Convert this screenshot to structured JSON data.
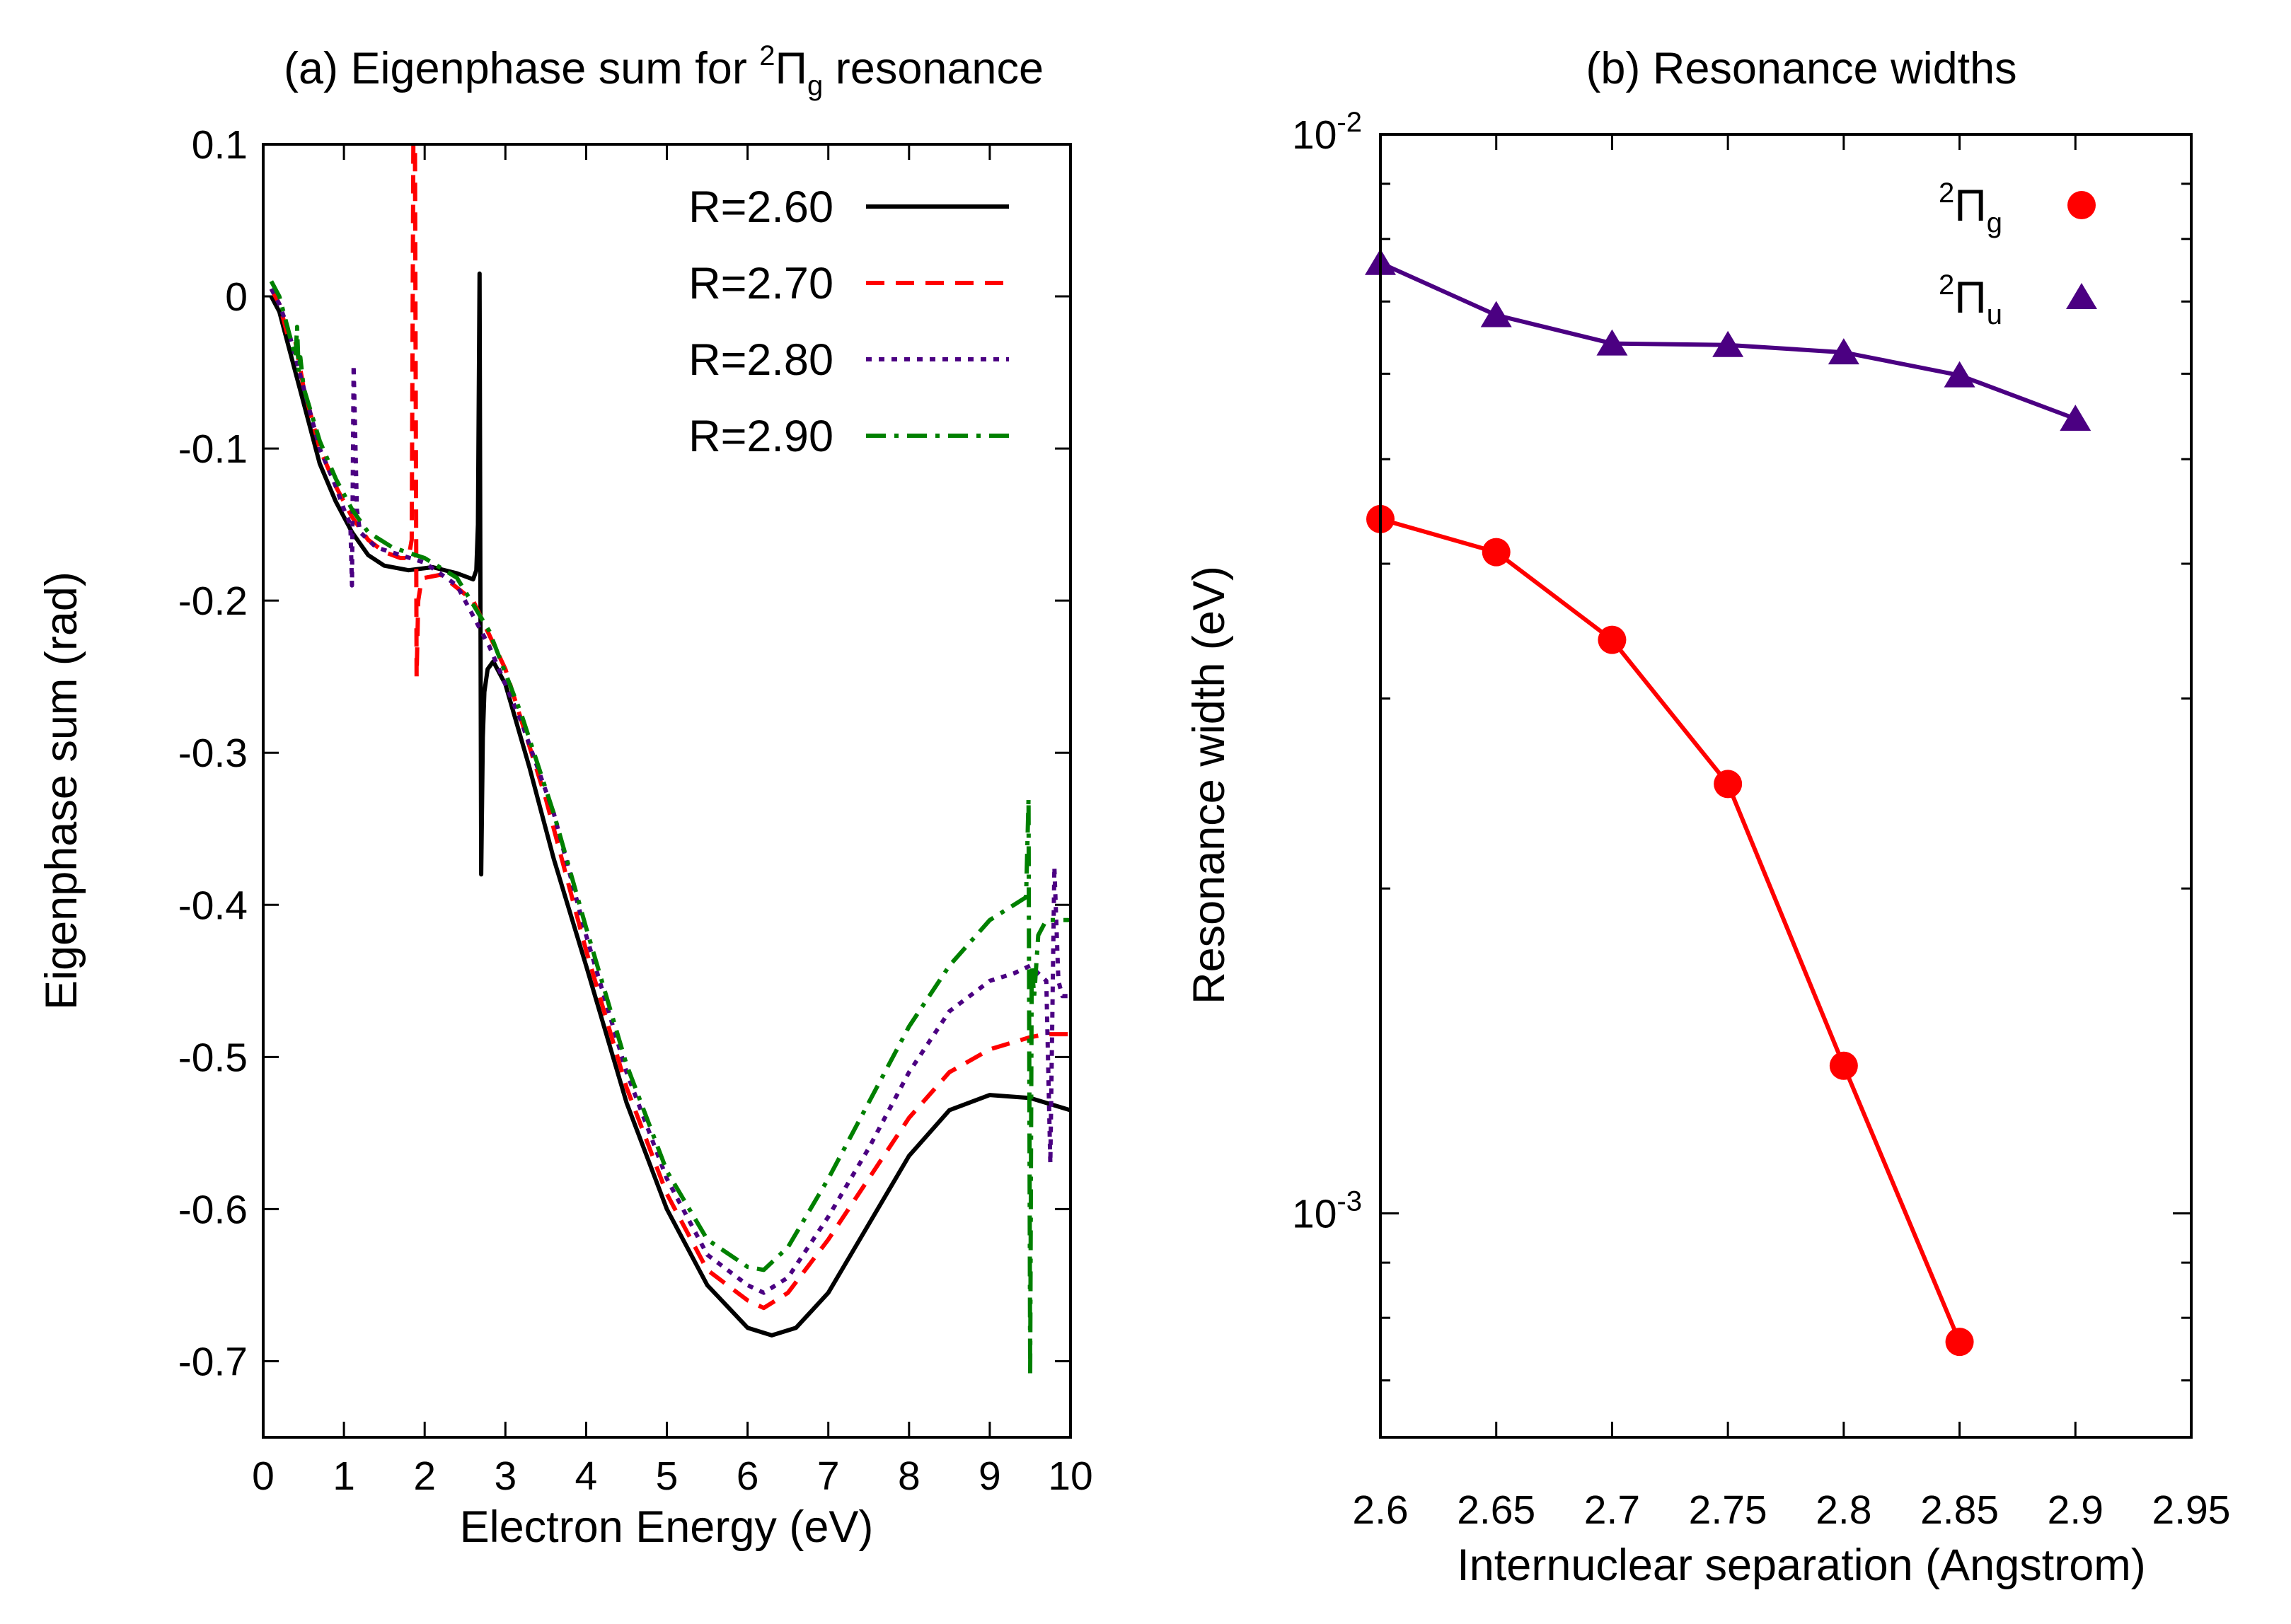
{
  "chart_data": [
    {
      "type": "line",
      "title": "(a) Eigenphase sum for ²Π_g resonance",
      "title_parts": {
        "prefix": "(a) Eigenphase sum for ",
        "sup": "2",
        "symbol": "Π",
        "sub": "g",
        "suffix": " resonance"
      },
      "xlabel": "Electron Energy (eV)",
      "ylabel": "Eigenphase sum (rad)",
      "xlim": [
        0,
        10
      ],
      "ylim": [
        -0.75,
        0.1
      ],
      "xticks": [
        "0",
        "1",
        "2",
        "3",
        "4",
        "5",
        "6",
        "7",
        "8",
        "9",
        "10"
      ],
      "yticks": [
        "0.1",
        "0",
        "-0.1",
        "-0.2",
        "-0.3",
        "-0.4",
        "-0.5",
        "-0.6",
        "-0.7"
      ],
      "legend_position": "top-right",
      "series": [
        {
          "name": "R=2.60",
          "color": "#000000",
          "dash": "solid",
          "x": [
            0.1,
            0.2,
            0.3,
            0.5,
            0.7,
            0.9,
            1.1,
            1.3,
            1.5,
            1.8,
            2.1,
            2.4,
            2.6,
            2.64,
            2.66,
            2.68,
            2.7,
            2.72,
            2.74,
            2.78,
            2.85,
            3.0,
            3.3,
            3.6,
            4.0,
            4.5,
            5.0,
            5.5,
            6.0,
            6.3,
            6.6,
            7.0,
            7.5,
            8.0,
            8.5,
            9.0,
            9.5,
            10.0
          ],
          "y": [
            0.0,
            -0.01,
            -0.03,
            -0.07,
            -0.11,
            -0.135,
            -0.155,
            -0.17,
            -0.177,
            -0.18,
            -0.178,
            -0.182,
            -0.186,
            -0.18,
            -0.15,
            0.015,
            -0.38,
            -0.29,
            -0.26,
            -0.245,
            -0.24,
            -0.255,
            -0.31,
            -0.37,
            -0.44,
            -0.53,
            -0.6,
            -0.65,
            -0.678,
            -0.683,
            -0.678,
            -0.655,
            -0.61,
            -0.565,
            -0.535,
            -0.525,
            -0.527,
            -0.535
          ]
        },
        {
          "name": "R=2.70",
          "color": "#ff0000",
          "dash": "dashed",
          "x": [
            0.1,
            0.2,
            0.3,
            0.4,
            0.5,
            0.7,
            0.9,
            1.1,
            1.3,
            1.5,
            1.7,
            1.8,
            1.84,
            1.86,
            1.88,
            1.9,
            1.92,
            1.95,
            2.0,
            2.2,
            2.6,
            3.0,
            3.5,
            4.0,
            4.5,
            5.0,
            5.5,
            6.0,
            6.2,
            6.5,
            7.0,
            7.5,
            8.0,
            8.5,
            9.0,
            9.5,
            9.7,
            9.8,
            10.0
          ],
          "y": [
            0.005,
            -0.005,
            -0.025,
            -0.03,
            -0.06,
            -0.1,
            -0.125,
            -0.145,
            -0.16,
            -0.168,
            -0.172,
            -0.172,
            -0.16,
            0.1,
            0.1,
            -0.25,
            -0.2,
            -0.19,
            -0.185,
            -0.183,
            -0.2,
            -0.245,
            -0.33,
            -0.43,
            -0.52,
            -0.59,
            -0.64,
            -0.66,
            -0.665,
            -0.655,
            -0.62,
            -0.58,
            -0.54,
            -0.51,
            -0.495,
            -0.487,
            -0.485,
            -0.485,
            -0.485
          ]
        },
        {
          "name": "R=2.80",
          "color": "#4b0082",
          "dash": "dotted",
          "x": [
            0.1,
            0.2,
            0.3,
            0.5,
            0.7,
            0.9,
            1.0,
            1.08,
            1.1,
            1.12,
            1.16,
            1.2,
            1.4,
            1.7,
            2.0,
            2.4,
            2.8,
            3.2,
            3.6,
            4.0,
            4.5,
            5.0,
            5.5,
            6.0,
            6.2,
            6.5,
            7.0,
            7.5,
            8.0,
            8.5,
            9.0,
            9.3,
            9.5,
            9.7,
            9.75,
            9.8,
            9.85,
            9.9,
            10.0
          ],
          "y": [
            0.005,
            -0.005,
            -0.02,
            -0.06,
            -0.1,
            -0.125,
            -0.14,
            -0.15,
            -0.19,
            -0.045,
            -0.14,
            -0.155,
            -0.165,
            -0.17,
            -0.175,
            -0.19,
            -0.23,
            -0.28,
            -0.34,
            -0.42,
            -0.51,
            -0.58,
            -0.63,
            -0.65,
            -0.655,
            -0.645,
            -0.605,
            -0.56,
            -0.51,
            -0.47,
            -0.45,
            -0.445,
            -0.44,
            -0.45,
            -0.57,
            -0.375,
            -0.45,
            -0.46,
            -0.46
          ]
        },
        {
          "name": "R=2.90",
          "color": "#008000",
          "dash": "dashdot",
          "x": [
            0.1,
            0.2,
            0.3,
            0.4,
            0.42,
            0.44,
            0.46,
            0.5,
            0.7,
            0.9,
            1.1,
            1.3,
            1.6,
            2.0,
            2.4,
            2.8,
            3.2,
            3.6,
            4.0,
            4.5,
            5.0,
            5.5,
            6.0,
            6.2,
            6.5,
            7.0,
            7.5,
            8.0,
            8.5,
            9.0,
            9.3,
            9.45,
            9.48,
            9.5,
            9.52,
            9.55,
            9.6,
            9.7,
            10.0
          ],
          "y": [
            0.01,
            0.0,
            -0.02,
            -0.04,
            -0.02,
            -0.05,
            -0.04,
            -0.06,
            -0.095,
            -0.12,
            -0.14,
            -0.155,
            -0.165,
            -0.172,
            -0.185,
            -0.22,
            -0.275,
            -0.34,
            -0.415,
            -0.505,
            -0.575,
            -0.62,
            -0.638,
            -0.64,
            -0.625,
            -0.58,
            -0.53,
            -0.48,
            -0.44,
            -0.41,
            -0.4,
            -0.395,
            -0.33,
            -0.71,
            -0.44,
            -0.46,
            -0.42,
            -0.41,
            -0.41
          ]
        }
      ]
    },
    {
      "type": "line",
      "title": "(b) Resonance widths",
      "xlabel": "Internuclear separation (Angstrom)",
      "ylabel": "Resonance width (eV)",
      "xlim": [
        2.6,
        2.95
      ],
      "ylim": [
        0.00062,
        0.01
      ],
      "yscale": "log",
      "xticks": [
        "2.6",
        "2.65",
        "2.7",
        "2.75",
        "2.8",
        "2.85",
        "2.9",
        "2.95"
      ],
      "yticks": [
        {
          "base": "10",
          "exp": "-2"
        },
        {
          "base": "10",
          "exp": "-3"
        }
      ],
      "legend_position": "top-right",
      "series": [
        {
          "name": "²Π_g",
          "sup": "2",
          "symbol": "Π",
          "sub": "g",
          "color": "#ff0000",
          "marker": "circle",
          "x": [
            2.6,
            2.65,
            2.7,
            2.75,
            2.8,
            2.85
          ],
          "y": [
            0.0044,
            0.0041,
            0.0034,
            0.0025,
            0.00137,
            0.00076
          ]
        },
        {
          "name": "²Π_u",
          "sup": "2",
          "symbol": "Π",
          "sub": "u",
          "color": "#4b0082",
          "marker": "triangle",
          "x": [
            2.6,
            2.65,
            2.7,
            2.75,
            2.8,
            2.85,
            2.9
          ],
          "y": [
            0.0076,
            0.0068,
            0.0064,
            0.00638,
            0.00628,
            0.00598,
            0.00545
          ]
        }
      ]
    }
  ]
}
